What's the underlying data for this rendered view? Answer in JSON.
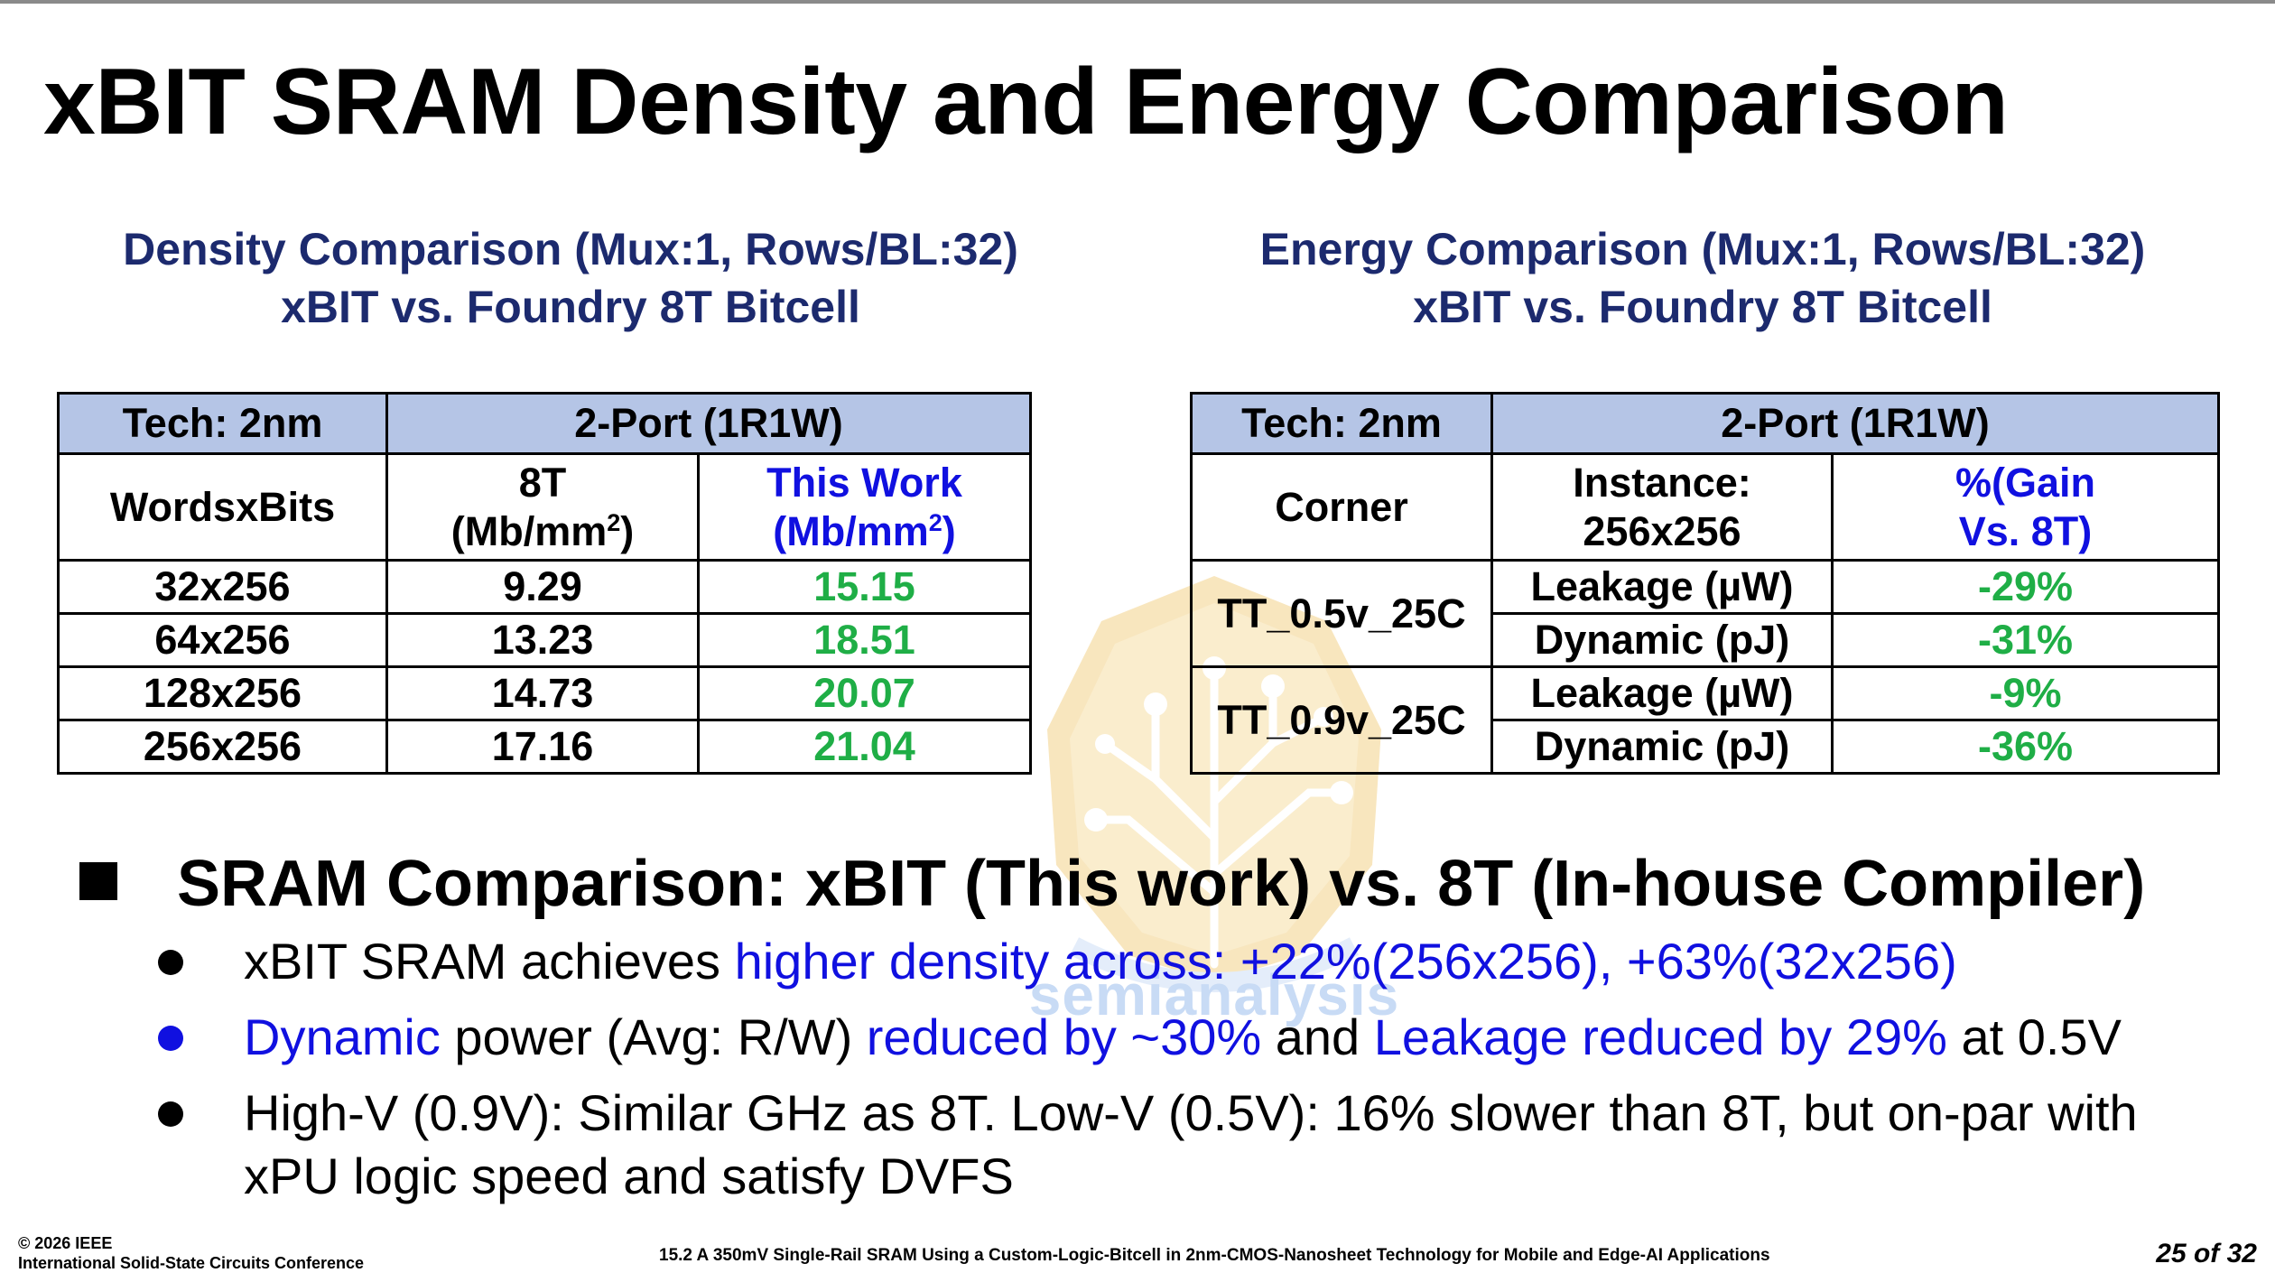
{
  "title": "xBIT SRAM Density and Energy Comparison",
  "density": {
    "heading_line1": "Density Comparison (Mux:1, Rows/BL:32)",
    "heading_line2": "xBIT vs. Foundry 8T Bitcell",
    "tech": "Tech: 2nm",
    "port": "2-Port (1R1W)",
    "col1": "WordsxBits",
    "col2_line1": "8T",
    "col2_line2": "(Mb/mm",
    "col3_line1": "This Work",
    "col3_line2": "(Mb/mm",
    "unit_sup": "2",
    "unit_close": ")",
    "rows": [
      {
        "size": "32x256",
        "eight_t": "9.29",
        "this_work": "15.15"
      },
      {
        "size": "64x256",
        "eight_t": "13.23",
        "this_work": "18.51"
      },
      {
        "size": "128x256",
        "eight_t": "14.73",
        "this_work": "20.07"
      },
      {
        "size": "256x256",
        "eight_t": "17.16",
        "this_work": "21.04"
      }
    ]
  },
  "energy": {
    "heading_line1": "Energy Comparison (Mux:1, Rows/BL:32)",
    "heading_line2": "xBIT vs. Foundry 8T Bitcell",
    "tech": "Tech: 2nm",
    "port": "2-Port (1R1W)",
    "col1": "Corner",
    "col2_line1": "Instance:",
    "col2_line2": "256x256",
    "col3_line1": "%(Gain",
    "col3_line2": "Vs. 8T)",
    "corners": [
      {
        "name": "TT_0.5v_25C",
        "leakage_label": "Leakage (µW)",
        "leakage": "-29%",
        "dynamic_label": "Dynamic  (pJ)",
        "dynamic": "-31%"
      },
      {
        "name": "TT_0.9v_25C",
        "leakage_label": "Leakage (µW)",
        "leakage": "-9%",
        "dynamic_label": "Dynamic  (pJ)",
        "dynamic": "-36%"
      }
    ]
  },
  "main_bullet": "SRAM Comparison: xBIT (This work) vs. 8T (In-house Compiler)",
  "bullets": {
    "b1_a": "xBIT SRAM achieves ",
    "b1_b": "higher density across:  +22%(256x256), +63%(32x256)",
    "b2_a": "Dynamic",
    "b2_b": " power (Avg: R/W) ",
    "b2_c": "reduced by ~30%",
    "b2_d": " and ",
    "b2_e": "Leakage reduced by 29%",
    "b2_f": " at 0.5V",
    "b3_line1": "High-V (0.9V): Similar GHz as 8T. Low-V (0.5V): 16% slower than 8T, but on-par with",
    "b3_line2": "xPU logic speed and satisfy DVFS"
  },
  "watermark": "semianalysis",
  "footer": {
    "copyright": "© 2026 IEEE",
    "conference": "International Solid-State Circuits Conference",
    "paper": "15.2 A 350mV Single-Rail SRAM Using a Custom-Logic-Bitcell in 2nm-CMOS-Nanosheet Technology for Mobile and Edge-AI Applications",
    "page": "25 of 32"
  },
  "colors": {
    "heading_navy": "#1c2a6e",
    "header_fill": "#b5c5e6",
    "accent_blue": "#1010e0",
    "gain_green": "#1fae46"
  }
}
